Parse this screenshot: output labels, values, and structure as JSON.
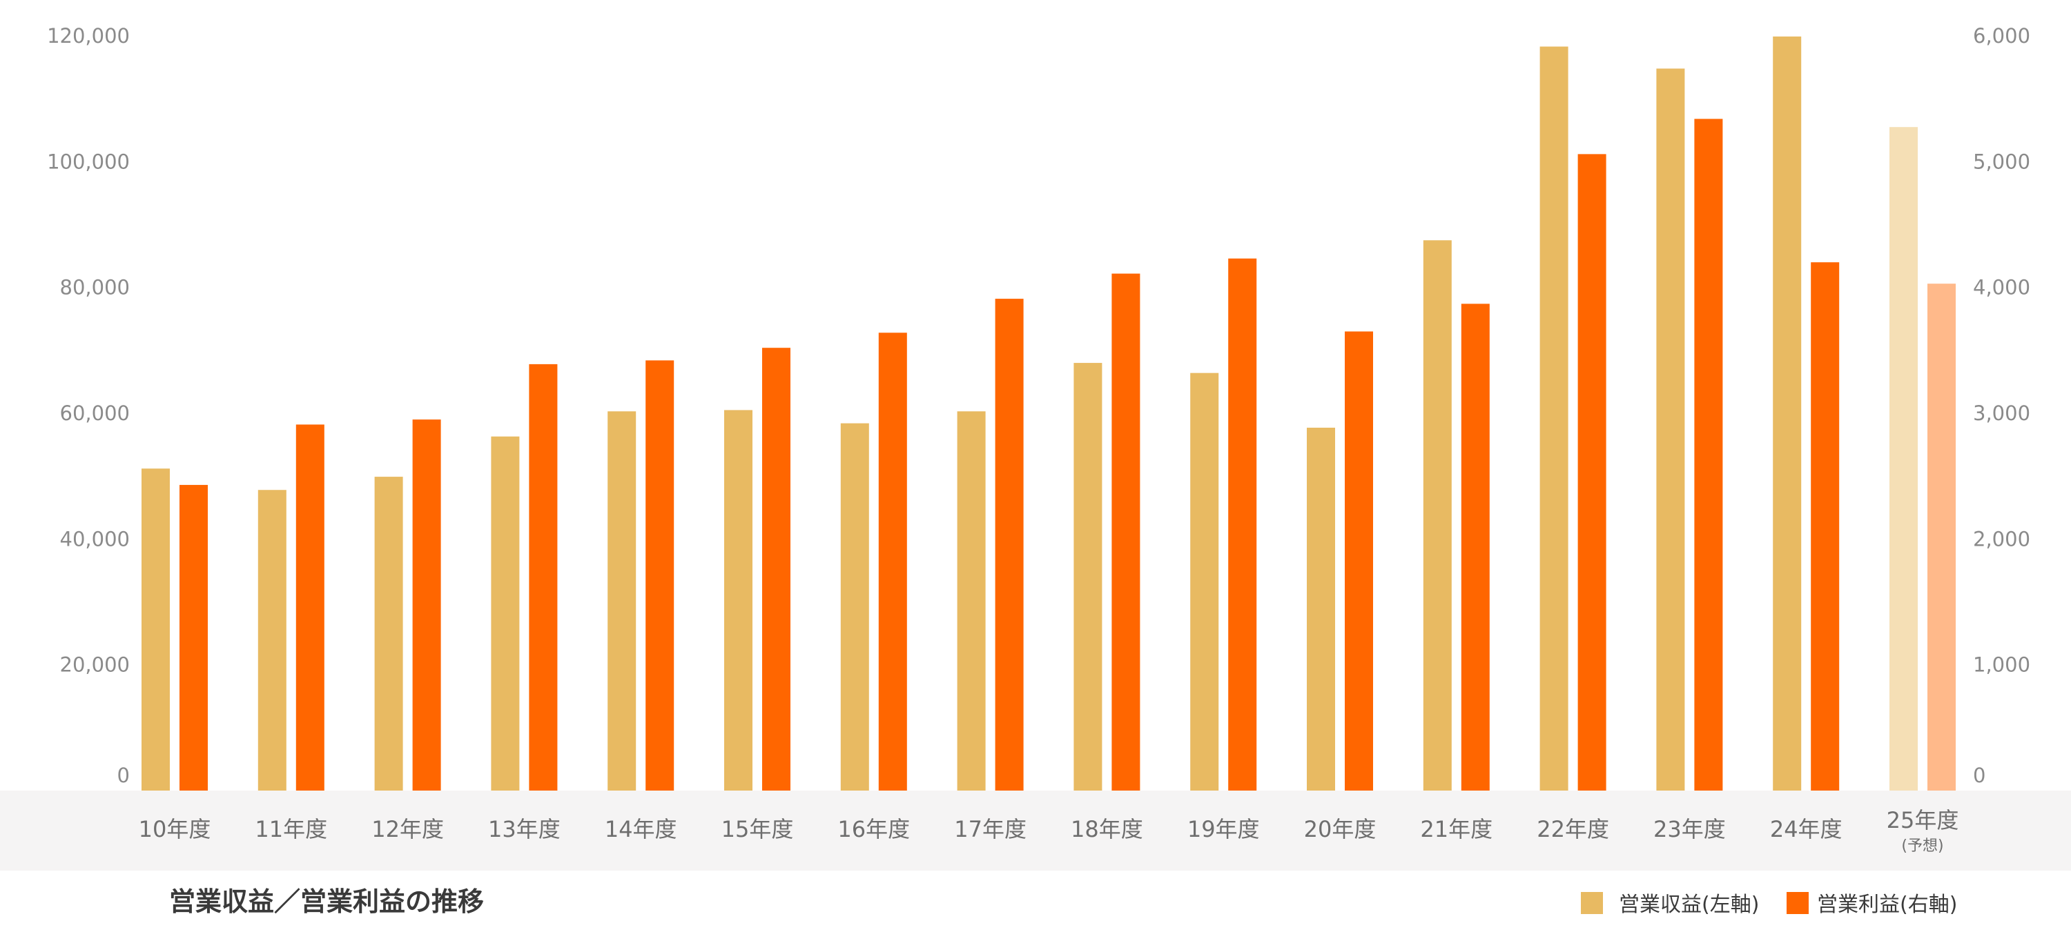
{
  "chart_data": {
    "type": "bar",
    "title": "営業収益／営業利益の推移",
    "categories": [
      "10年度",
      "11年度",
      "12年度",
      "13年度",
      "14年度",
      "15年度",
      "16年度",
      "17年度",
      "18年度",
      "19年度",
      "20年度",
      "21年度",
      "22年度",
      "23年度",
      "24年度",
      "25年度"
    ],
    "category_subtexts": [
      "",
      "",
      "",
      "",
      "",
      "",
      "",
      "",
      "",
      "",
      "",
      "",
      "",
      "",
      "",
      "(予想)"
    ],
    "series": [
      {
        "name": "営業収益(左軸)",
        "axis": "left",
        "color": "#e8ba62",
        "forecast_color": "#f5dfb5",
        "values": [
          51200,
          47800,
          49900,
          56300,
          60300,
          60500,
          58400,
          60300,
          68000,
          66400,
          57700,
          87500,
          118300,
          114800,
          119900,
          105500
        ]
      },
      {
        "name": "営業利益(右軸)",
        "axis": "right",
        "color": "#ff6600",
        "forecast_color": "#ffb98a",
        "values": [
          2430,
          2910,
          2950,
          3390,
          3420,
          3520,
          3640,
          3910,
          4110,
          4230,
          3650,
          3870,
          5060,
          5340,
          4200,
          4030
        ]
      }
    ],
    "forecast_index": 15,
    "y_left": {
      "ylim": [
        0,
        120000
      ],
      "tick_values": [
        0,
        20000,
        40000,
        60000,
        80000,
        100000,
        120000
      ],
      "tick_labels": [
        "0",
        "20,000",
        "40,000",
        "60,000",
        "80,000",
        "100,000",
        "120,000"
      ]
    },
    "y_right": {
      "ylim": [
        0,
        6000
      ],
      "tick_values": [
        0,
        1000,
        2000,
        3000,
        4000,
        5000,
        6000
      ],
      "tick_labels": [
        "0",
        "1,000",
        "2,000",
        "3,000",
        "4,000",
        "5,000",
        "6,000"
      ]
    },
    "grid": false,
    "legend_position": "bottom-right",
    "category_band_color": "#f5f4f4"
  }
}
